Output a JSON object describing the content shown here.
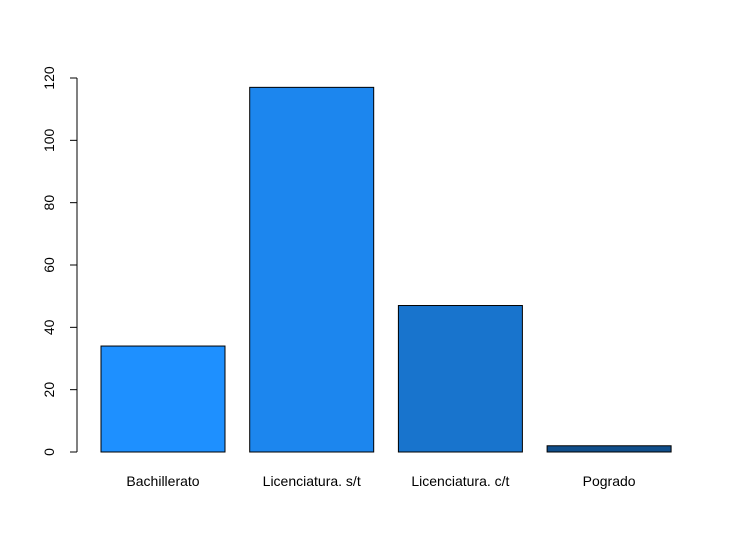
{
  "chart_data": {
    "type": "bar",
    "title": "",
    "xlabel": "",
    "ylabel": "",
    "categories": [
      "Bachillerato",
      "Licenciatura. s/t",
      "Licenciatura. c/t",
      "Pogrado"
    ],
    "values": [
      34,
      117,
      47,
      2
    ],
    "colors": [
      "#1e90ff",
      "#1c86ee",
      "#1874cd",
      "#104e8b"
    ],
    "ylim": [
      0,
      120
    ],
    "yticks": [
      0,
      20,
      40,
      60,
      80,
      100,
      120
    ],
    "grid": false,
    "legend": "none"
  }
}
